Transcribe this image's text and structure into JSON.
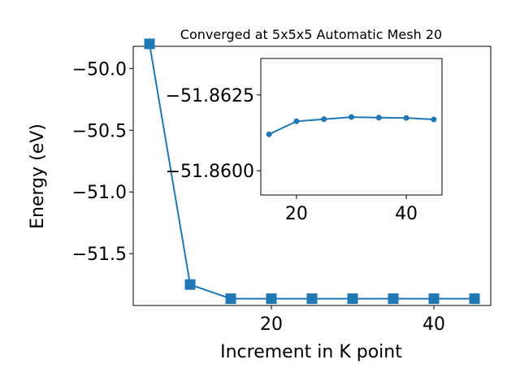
{
  "chart_data": [
    {
      "type": "line",
      "title": "Converged at 5x5x5 Automatic Mesh 20",
      "xlabel": "Increment in K point",
      "ylabel": "Energy (eV)",
      "xlim": [
        3,
        47
      ],
      "ylim": [
        -51.92,
        -49.82
      ],
      "xticks": [
        20,
        40
      ],
      "yticks": [
        -50.0,
        -50.5,
        -51.0,
        -51.5
      ],
      "xtick_labels": [
        "20",
        "40"
      ],
      "ytick_labels": [
        "−50.0",
        "−50.5",
        "−51.0",
        "−51.5"
      ],
      "marker": "square",
      "color": "#1f77b4",
      "series": [
        {
          "x": [
            5,
            10,
            15,
            20,
            25,
            30,
            35,
            40,
            45
          ],
          "values": [
            -49.8,
            -51.75,
            -51.865,
            -51.865,
            -51.865,
            -51.865,
            -51.865,
            -51.865,
            -51.865
          ]
        }
      ]
    },
    {
      "type": "line",
      "title": "",
      "xlabel": "",
      "ylabel": "",
      "xlim": [
        13.5,
        46.5
      ],
      "ylim": [
        -51.8592,
        -51.8637
      ],
      "xticks": [
        20,
        40
      ],
      "yticks": [
        -51.8625,
        -51.86
      ],
      "xtick_labels": [
        "20",
        "40"
      ],
      "ytick_labels": [
        "−51.8625",
        "−51.8600"
      ],
      "marker": "circle",
      "color": "#1f77b4",
      "series": [
        {
          "x": [
            15,
            20,
            25,
            30,
            35,
            40,
            45
          ],
          "values": [
            -51.8612,
            -51.86163,
            -51.8617,
            -51.86177,
            -51.86175,
            -51.86174,
            -51.86169
          ]
        }
      ]
    }
  ]
}
